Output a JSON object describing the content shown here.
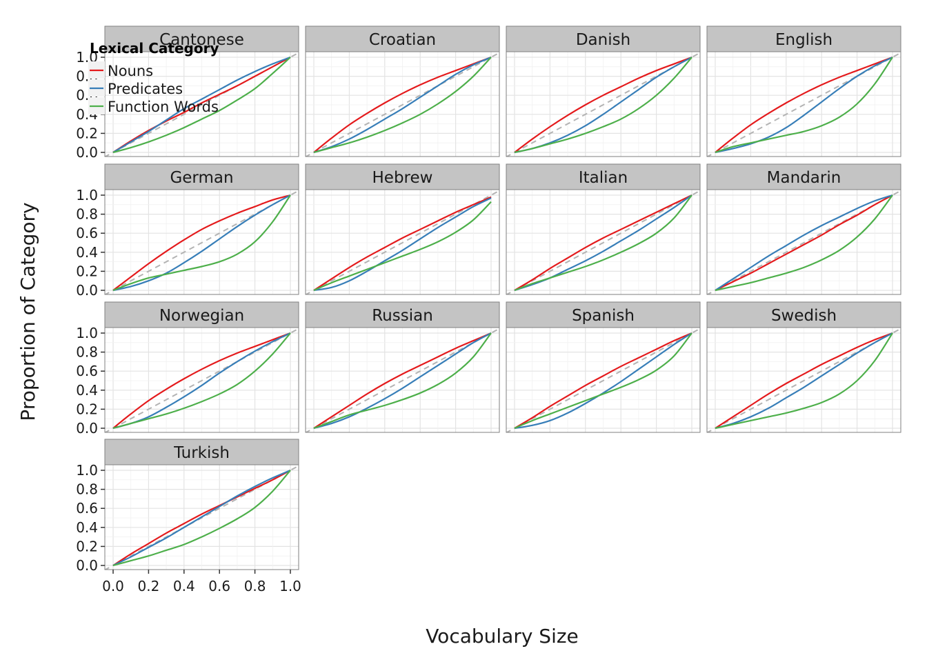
{
  "chart_data": {
    "type": "line",
    "facet_layout": "4 columns, 4 rows",
    "xlabel": "Vocabulary Size",
    "ylabel": "Proportion of Category",
    "xlim": [
      0,
      1
    ],
    "ylim": [
      0,
      1
    ],
    "x_ticks": [
      "0.0",
      "0.2",
      "0.4",
      "0.6",
      "0.8",
      "1.0"
    ],
    "y_ticks": [
      "0.0",
      "0.2",
      "0.4",
      "0.6",
      "0.8",
      "1.0"
    ],
    "grid": true,
    "reference_line": {
      "style": "dashed",
      "color": "#b3b3b3",
      "from": [
        0,
        0
      ],
      "to": [
        1,
        1
      ]
    },
    "legend": {
      "title": "Lexical Category",
      "placement": "top-left",
      "entries": [
        {
          "name": "Nouns",
          "color": "#e41a1c"
        },
        {
          "name": "Predicates",
          "color": "#377eb8"
        },
        {
          "name": "Function Words",
          "color": "#4daf4a"
        }
      ]
    },
    "x": [
      0,
      0.1,
      0.2,
      0.3,
      0.4,
      0.5,
      0.6,
      0.7,
      0.8,
      0.9,
      1.0
    ],
    "panels": [
      {
        "name": "Cantonese",
        "series": [
          {
            "name": "Nouns",
            "values": [
              0,
              0.12,
              0.23,
              0.33,
              0.42,
              0.52,
              0.61,
              0.7,
              0.8,
              0.9,
              1.0
            ]
          },
          {
            "name": "Predicates",
            "values": [
              0,
              0.11,
              0.22,
              0.34,
              0.46,
              0.56,
              0.66,
              0.76,
              0.85,
              0.93,
              1.0
            ]
          },
          {
            "name": "Function Words",
            "values": [
              0,
              0.05,
              0.11,
              0.18,
              0.26,
              0.35,
              0.44,
              0.55,
              0.67,
              0.83,
              1.0
            ]
          }
        ]
      },
      {
        "name": "Croatian",
        "series": [
          {
            "name": "Nouns",
            "values": [
              0,
              0.15,
              0.29,
              0.41,
              0.52,
              0.62,
              0.71,
              0.79,
              0.86,
              0.93,
              1.0
            ]
          },
          {
            "name": "Predicates",
            "values": [
              0,
              0.06,
              0.14,
              0.24,
              0.35,
              0.46,
              0.58,
              0.7,
              0.82,
              0.92,
              1.0
            ]
          },
          {
            "name": "Function Words",
            "values": [
              0,
              0.05,
              0.1,
              0.16,
              0.23,
              0.31,
              0.4,
              0.51,
              0.64,
              0.8,
              1.0
            ]
          }
        ]
      },
      {
        "name": "Danish",
        "series": [
          {
            "name": "Nouns",
            "values": [
              0,
              0.14,
              0.27,
              0.39,
              0.5,
              0.6,
              0.69,
              0.78,
              0.86,
              0.93,
              1.0
            ]
          },
          {
            "name": "Predicates",
            "values": [
              0,
              0.04,
              0.1,
              0.18,
              0.28,
              0.4,
              0.53,
              0.66,
              0.79,
              0.9,
              1.0
            ]
          },
          {
            "name": "Function Words",
            "values": [
              0,
              0.04,
              0.09,
              0.14,
              0.2,
              0.27,
              0.35,
              0.46,
              0.6,
              0.78,
              1.0
            ]
          }
        ]
      },
      {
        "name": "English",
        "series": [
          {
            "name": "Nouns",
            "values": [
              0,
              0.15,
              0.29,
              0.41,
              0.52,
              0.62,
              0.71,
              0.79,
              0.86,
              0.93,
              1.0
            ]
          },
          {
            "name": "Predicates",
            "values": [
              0,
              0.04,
              0.09,
              0.16,
              0.26,
              0.39,
              0.53,
              0.67,
              0.8,
              0.91,
              1.0
            ]
          },
          {
            "name": "Function Words",
            "values": [
              0,
              0.06,
              0.1,
              0.14,
              0.18,
              0.22,
              0.28,
              0.37,
              0.51,
              0.72,
              1.0
            ]
          }
        ]
      },
      {
        "name": "German",
        "series": [
          {
            "name": "Nouns",
            "values": [
              0,
              0.14,
              0.28,
              0.41,
              0.53,
              0.64,
              0.73,
              0.81,
              0.88,
              0.95,
              1.0
            ]
          },
          {
            "name": "Predicates",
            "values": [
              0,
              0.04,
              0.1,
              0.18,
              0.29,
              0.41,
              0.54,
              0.67,
              0.79,
              0.9,
              1.0
            ]
          },
          {
            "name": "Function Words",
            "values": [
              0,
              0.07,
              0.13,
              0.17,
              0.21,
              0.25,
              0.3,
              0.38,
              0.51,
              0.72,
              1.0
            ]
          }
        ]
      },
      {
        "name": "Hebrew",
        "series": [
          {
            "name": "Nouns",
            "values": [
              0,
              0.12,
              0.24,
              0.35,
              0.45,
              0.55,
              0.64,
              0.73,
              0.82,
              0.9,
              0.98
            ]
          },
          {
            "name": "Predicates",
            "values": [
              0,
              0.03,
              0.1,
              0.2,
              0.31,
              0.42,
              0.54,
              0.66,
              0.77,
              0.88,
              0.97
            ]
          },
          {
            "name": "Function Words",
            "values": [
              0,
              0.08,
              0.15,
              0.22,
              0.29,
              0.36,
              0.43,
              0.51,
              0.61,
              0.74,
              0.93
            ]
          }
        ]
      },
      {
        "name": "Italian",
        "series": [
          {
            "name": "Nouns",
            "values": [
              0,
              0.11,
              0.23,
              0.34,
              0.45,
              0.55,
              0.64,
              0.73,
              0.82,
              0.91,
              1.0
            ]
          },
          {
            "name": "Predicates",
            "values": [
              0,
              0.06,
              0.13,
              0.22,
              0.31,
              0.41,
              0.52,
              0.63,
              0.75,
              0.87,
              1.0
            ]
          },
          {
            "name": "Function Words",
            "values": [
              0,
              0.07,
              0.13,
              0.19,
              0.25,
              0.32,
              0.4,
              0.49,
              0.6,
              0.76,
              1.0
            ]
          }
        ]
      },
      {
        "name": "Mandarin",
        "series": [
          {
            "name": "Nouns",
            "values": [
              0,
              0.09,
              0.18,
              0.28,
              0.38,
              0.48,
              0.58,
              0.69,
              0.79,
              0.9,
              1.0
            ]
          },
          {
            "name": "Predicates",
            "values": [
              0,
              0.12,
              0.24,
              0.36,
              0.47,
              0.58,
              0.68,
              0.77,
              0.86,
              0.94,
              1.0
            ]
          },
          {
            "name": "Function Words",
            "values": [
              0,
              0.04,
              0.08,
              0.13,
              0.18,
              0.24,
              0.32,
              0.42,
              0.56,
              0.75,
              1.0
            ]
          }
        ]
      },
      {
        "name": "Norwegian",
        "series": [
          {
            "name": "Nouns",
            "values": [
              0,
              0.15,
              0.29,
              0.41,
              0.52,
              0.62,
              0.71,
              0.79,
              0.86,
              0.93,
              1.0
            ]
          },
          {
            "name": "Predicates",
            "values": [
              0,
              0.05,
              0.12,
              0.22,
              0.33,
              0.45,
              0.58,
              0.7,
              0.81,
              0.91,
              1.0
            ]
          },
          {
            "name": "Function Words",
            "values": [
              0,
              0.05,
              0.1,
              0.15,
              0.21,
              0.28,
              0.36,
              0.46,
              0.6,
              0.78,
              1.0
            ]
          }
        ]
      },
      {
        "name": "Russian",
        "series": [
          {
            "name": "Nouns",
            "values": [
              0,
              0.12,
              0.24,
              0.36,
              0.47,
              0.57,
              0.66,
              0.75,
              0.84,
              0.92,
              1.0
            ]
          },
          {
            "name": "Predicates",
            "values": [
              0,
              0.05,
              0.12,
              0.21,
              0.31,
              0.42,
              0.54,
              0.66,
              0.78,
              0.9,
              1.0
            ]
          },
          {
            "name": "Function Words",
            "values": [
              0,
              0.07,
              0.14,
              0.19,
              0.24,
              0.3,
              0.37,
              0.46,
              0.58,
              0.75,
              1.0
            ]
          }
        ]
      },
      {
        "name": "Spanish",
        "series": [
          {
            "name": "Nouns",
            "values": [
              0,
              0.11,
              0.23,
              0.34,
              0.45,
              0.55,
              0.65,
              0.74,
              0.83,
              0.92,
              1.0
            ]
          },
          {
            "name": "Predicates",
            "values": [
              0,
              0.03,
              0.08,
              0.16,
              0.26,
              0.37,
              0.49,
              0.62,
              0.75,
              0.88,
              1.0
            ]
          },
          {
            "name": "Function Words",
            "values": [
              0,
              0.08,
              0.15,
              0.22,
              0.29,
              0.36,
              0.43,
              0.51,
              0.61,
              0.76,
              1.0
            ]
          }
        ]
      },
      {
        "name": "Swedish",
        "series": [
          {
            "name": "Nouns",
            "values": [
              0,
              0.12,
              0.24,
              0.36,
              0.47,
              0.57,
              0.67,
              0.76,
              0.85,
              0.93,
              1.0
            ]
          },
          {
            "name": "Predicates",
            "values": [
              0,
              0.05,
              0.12,
              0.21,
              0.32,
              0.43,
              0.55,
              0.67,
              0.79,
              0.9,
              1.0
            ]
          },
          {
            "name": "Function Words",
            "values": [
              0,
              0.04,
              0.08,
              0.12,
              0.16,
              0.21,
              0.27,
              0.36,
              0.5,
              0.71,
              1.0
            ]
          }
        ]
      },
      {
        "name": "Turkish",
        "series": [
          {
            "name": "Nouns",
            "values": [
              0,
              0.12,
              0.23,
              0.34,
              0.44,
              0.54,
              0.63,
              0.72,
              0.81,
              0.9,
              1.0
            ]
          },
          {
            "name": "Predicates",
            "values": [
              0,
              0.09,
              0.19,
              0.29,
              0.4,
              0.51,
              0.62,
              0.73,
              0.83,
              0.92,
              1.0
            ]
          },
          {
            "name": "Function Words",
            "values": [
              0,
              0.05,
              0.1,
              0.16,
              0.22,
              0.3,
              0.39,
              0.49,
              0.61,
              0.78,
              1.0
            ]
          }
        ]
      }
    ]
  }
}
